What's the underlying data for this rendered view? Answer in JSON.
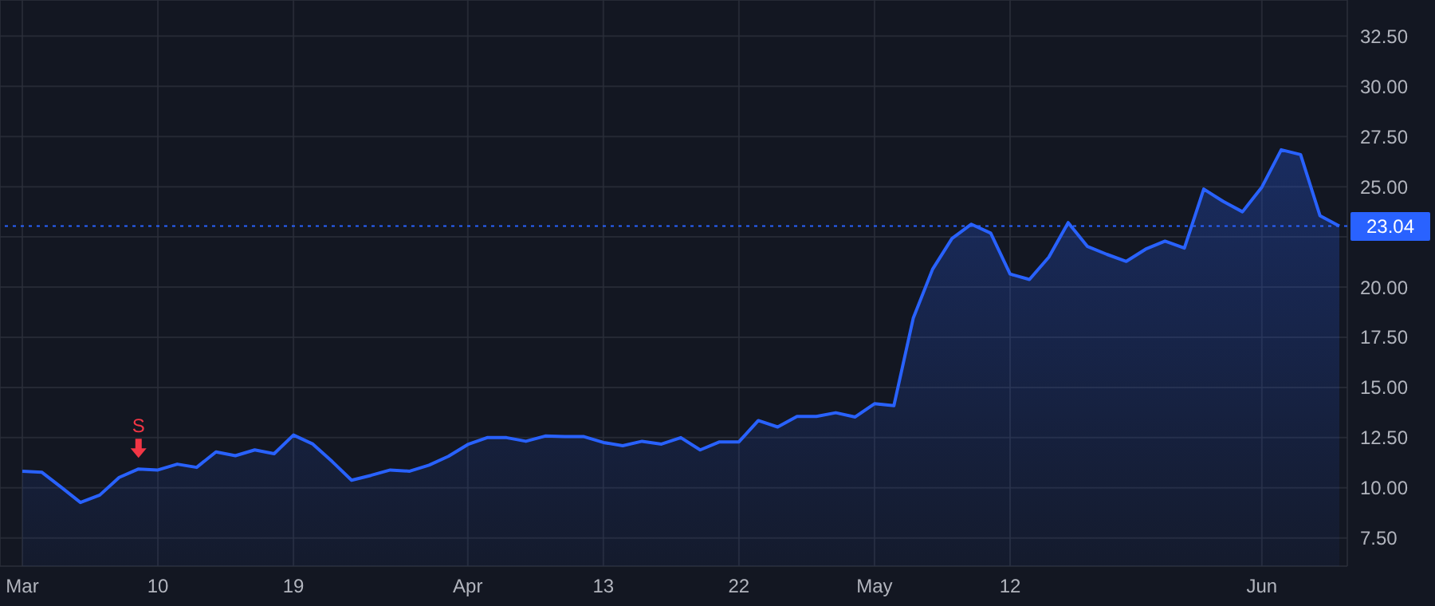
{
  "chart_data": {
    "type": "area",
    "categories": [
      "Mar",
      null,
      null,
      null,
      null,
      null,
      null,
      "10",
      null,
      null,
      null,
      null,
      null,
      null,
      "19",
      null,
      null,
      null,
      null,
      null,
      null,
      null,
      null,
      "Apr",
      null,
      null,
      null,
      null,
      null,
      null,
      "13",
      null,
      null,
      null,
      null,
      null,
      null,
      "22",
      null,
      null,
      null,
      null,
      null,
      null,
      "May",
      null,
      null,
      null,
      null,
      null,
      null,
      "12",
      null,
      null,
      null,
      null,
      null,
      null,
      null,
      null,
      null,
      null,
      null,
      null,
      "Jun",
      null,
      null,
      null,
      null
    ],
    "series": [
      {
        "color": "#2962ff",
        "values": [
          10.83,
          10.78,
          10.04,
          9.27,
          9.64,
          10.52,
          10.94,
          10.89,
          11.18,
          11.02,
          11.79,
          11.6,
          11.89,
          11.7,
          12.63,
          12.18,
          11.31,
          10.38,
          10.62,
          10.89,
          10.83,
          11.13,
          11.57,
          12.16,
          12.5,
          12.5,
          12.32,
          12.58,
          12.55,
          12.55,
          12.26,
          12.1,
          12.32,
          12.18,
          12.5,
          11.89,
          12.29,
          12.29,
          13.35,
          13.03,
          13.56,
          13.56,
          13.74,
          13.53,
          14.19,
          14.09,
          18.45,
          20.89,
          22.42,
          23.13,
          22.69,
          20.65,
          20.38,
          21.49,
          23.21,
          22.02,
          21.63,
          21.28,
          21.89,
          22.29,
          21.94,
          24.88,
          24.27,
          23.75,
          24.98,
          26.84,
          26.6,
          23.56,
          23.04
        ]
      }
    ],
    "ylim": [
      6.1,
      34.3
    ],
    "yticks": [
      {
        "value": 7.5,
        "label": "7.50"
      },
      {
        "value": 10,
        "label": "10.00"
      },
      {
        "value": 12.5,
        "label": "12.50"
      },
      {
        "value": 15,
        "label": "15.00"
      },
      {
        "value": 17.5,
        "label": "17.50"
      },
      {
        "value": 20,
        "label": "20.00"
      },
      {
        "value": 22.5,
        "label": null
      },
      {
        "value": 25,
        "label": "25.00"
      },
      {
        "value": 27.5,
        "label": "27.50"
      },
      {
        "value": 30,
        "label": "30.00"
      },
      {
        "value": 32.5,
        "label": "32.50"
      }
    ],
    "grid": true,
    "ref_lines": [
      {
        "axis": "y",
        "value": 23.04,
        "label": "23.04",
        "color": "#2962ff",
        "line_style": "dotted"
      }
    ],
    "annotations": [
      {
        "text": "S",
        "y": 10.94
      }
    ]
  }
}
